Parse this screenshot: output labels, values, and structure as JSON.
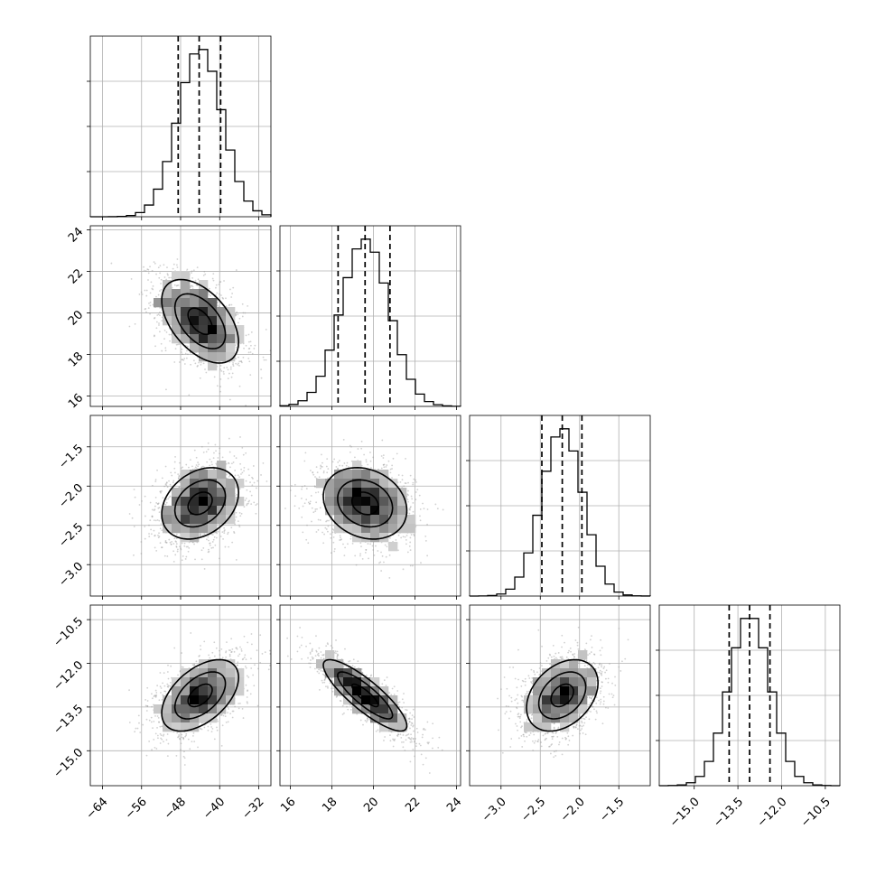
{
  "chart_data": {
    "type": "corner",
    "parameters": [
      {
        "ticks": [
          -64,
          -56,
          -48,
          -40,
          -32
        ],
        "tick_labels": [
          "−64",
          "−56",
          "−48",
          "−40",
          "−32"
        ],
        "range": [
          -66.5,
          -29.5
        ],
        "mean": -44,
        "sd": 4.5,
        "quantiles": [
          -48.5,
          -44.2,
          -39.8
        ]
      },
      {
        "ticks": [
          16,
          18,
          20,
          22,
          24
        ],
        "tick_labels": [
          "16",
          "18",
          "20",
          "22",
          "24"
        ],
        "range": [
          15.5,
          24.2
        ],
        "mean": 19.6,
        "sd": 1.15,
        "quantiles": [
          18.3,
          19.6,
          20.8
        ]
      },
      {
        "ticks": [
          -3.0,
          -2.5,
          -2.0,
          -1.5
        ],
        "tick_labels": [
          "−3.0",
          "−2.5",
          "−2.0",
          "−1.5"
        ],
        "range": [
          -3.4,
          -1.1
        ],
        "mean": -2.22,
        "sd": 0.26,
        "quantiles": [
          -2.48,
          -2.22,
          -1.97
        ]
      },
      {
        "ticks": [
          -15.0,
          -13.5,
          -12.0,
          -10.5
        ],
        "tick_labels": [
          "−15.0",
          "−13.5",
          "−12.0",
          "−10.5"
        ],
        "range": [
          -16.2,
          -10.0
        ],
        "mean": -13.1,
        "sd": 0.7,
        "quantiles": [
          -13.8,
          -13.1,
          -12.4
        ]
      }
    ],
    "correlations": {
      "1-0": -0.5,
      "2-0": 0.3,
      "2-1": -0.2,
      "3-0": 0.5,
      "3-1": -0.85,
      "3-2": 0.35
    },
    "histogram_bins": 20,
    "contour_levels": 3,
    "quantile_line_style": "dashed",
    "grid": true,
    "colors": {
      "ink": "#000000",
      "grid": "#b0b0b0",
      "points": "#9a9a9a"
    }
  }
}
